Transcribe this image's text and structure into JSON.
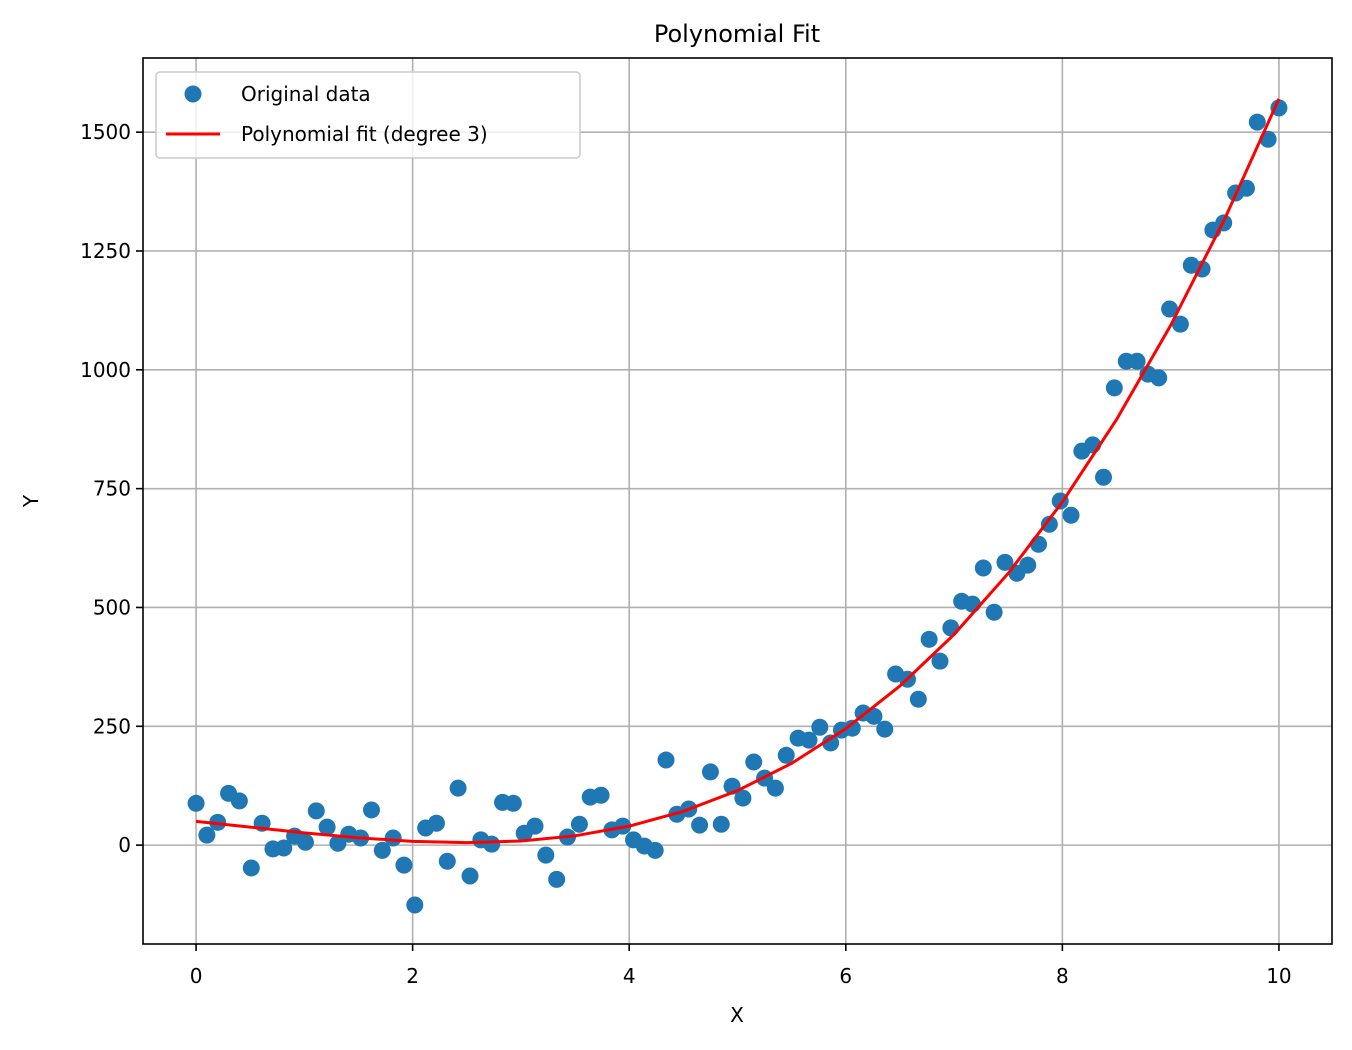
{
  "chart_data": {
    "type": "scatter",
    "title": "Polynomial Fit",
    "x_label": "X",
    "y_label": "Y",
    "xlim": [
      -0.49,
      10.49
    ],
    "ylim": [
      -208,
      1656
    ],
    "xticks": [
      0,
      2,
      4,
      6,
      8,
      10
    ],
    "yticks": [
      0,
      250,
      500,
      750,
      1000,
      1250,
      1500
    ],
    "grid": true,
    "legend": "upper left",
    "series": [
      {
        "name": "Original data",
        "kind": "scatter",
        "color": "#1f77b4",
        "x": [
          0,
          0.1,
          0.2,
          0.3,
          0.4,
          0.51,
          0.61,
          0.71,
          0.81,
          0.91,
          1.01,
          1.11,
          1.21,
          1.31,
          1.41,
          1.52,
          1.62,
          1.72,
          1.82,
          1.92,
          2.02,
          2.12,
          2.22,
          2.32,
          2.42,
          2.53,
          2.63,
          2.73,
          2.83,
          2.93,
          3.03,
          3.13,
          3.23,
          3.33,
          3.43,
          3.54,
          3.64,
          3.74,
          3.84,
          3.94,
          4.04,
          4.14,
          4.24,
          4.34,
          4.44,
          4.55,
          4.65,
          4.75,
          4.85,
          4.95,
          5.05,
          5.15,
          5.25,
          5.35,
          5.45,
          5.56,
          5.66,
          5.76,
          5.86,
          5.96,
          6.06,
          6.16,
          6.26,
          6.36,
          6.46,
          6.57,
          6.67,
          6.77,
          6.87,
          6.97,
          7.07,
          7.17,
          7.27,
          7.37,
          7.47,
          7.58,
          7.68,
          7.78,
          7.88,
          7.98,
          8.08,
          8.18,
          8.28,
          8.38,
          8.48,
          8.59,
          8.69,
          8.79,
          8.89,
          8.99,
          9.09,
          9.19,
          9.29,
          9.39,
          9.49,
          9.6,
          9.7,
          9.8,
          9.9,
          10
        ],
        "values": [
          88,
          21,
          48,
          109,
          93,
          -48,
          46,
          -8,
          -6,
          19,
          6,
          72,
          38,
          4,
          23,
          15,
          74,
          -11,
          15,
          -42,
          -126,
          36,
          46,
          -34,
          120,
          -65,
          11,
          2,
          90,
          88,
          25,
          40,
          -21,
          -72,
          17,
          44,
          101,
          105,
          32,
          40,
          11,
          -2,
          -11,
          179,
          65,
          76,
          42,
          154,
          44,
          124,
          99,
          175,
          141,
          120,
          189,
          225,
          221,
          248,
          215,
          242,
          246,
          278,
          271,
          244,
          360,
          349,
          307,
          433,
          387,
          457,
          513,
          507,
          583,
          490,
          595,
          572,
          589,
          633,
          675,
          724,
          694,
          829,
          842,
          774,
          962,
          1018,
          1018,
          991,
          983,
          1128,
          1096,
          1220,
          1212,
          1294,
          1309,
          1372,
          1382,
          1521,
          1485,
          1551
        ]
      },
      {
        "name": "Polynomial fit (degree 3)",
        "kind": "line",
        "color": "#ff0000",
        "x": [
          0,
          0.5,
          1,
          1.5,
          2,
          2.5,
          3,
          3.5,
          4,
          4.5,
          5,
          5.5,
          6,
          6.5,
          7,
          7.5,
          8,
          8.5,
          9,
          9.5,
          10
        ],
        "values": [
          50,
          38,
          25.9,
          15.4,
          8,
          5.2,
          8.6,
          19.6,
          40,
          71.2,
          114.7,
          172.1,
          245,
          334.9,
          443.3,
          571.8,
          722,
          895.3,
          1093.5,
          1317.9,
          1570
        ]
      }
    ]
  }
}
